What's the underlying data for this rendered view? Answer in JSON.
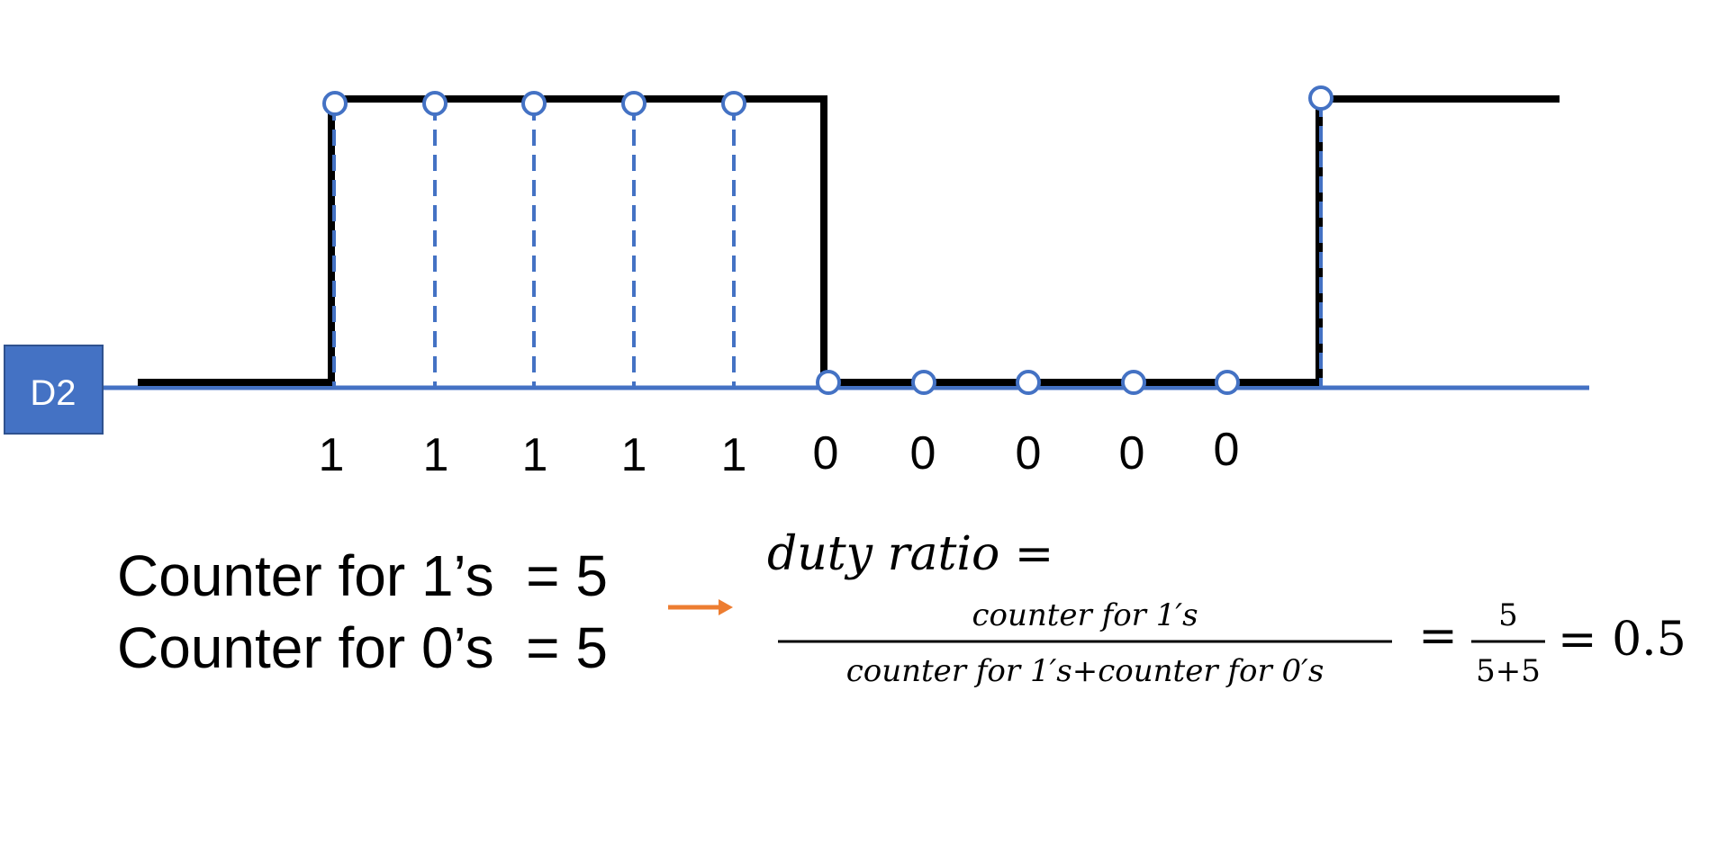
{
  "signal": {
    "label": "D2",
    "bits": [
      "1",
      "1",
      "1",
      "1",
      "1",
      "0",
      "0",
      "0",
      "0",
      "0"
    ],
    "colors": {
      "signal": "#000000",
      "axis": "#4472C4",
      "sample": "#4472C4",
      "label_box": "#4472C4"
    }
  },
  "counters": {
    "ones": "Counter for 1’s  = 5",
    "zeros": "Counter for 0’s  = 5"
  },
  "arrow_color": "#ED7D31",
  "formula": {
    "lhs": "duty ratio =",
    "numerator": "counter for 1′s",
    "denominator": "counter for 1′s+counter for 0′s",
    "eq1": "=",
    "small_num": "5",
    "small_den": "5+5",
    "result": "= 0.5"
  }
}
